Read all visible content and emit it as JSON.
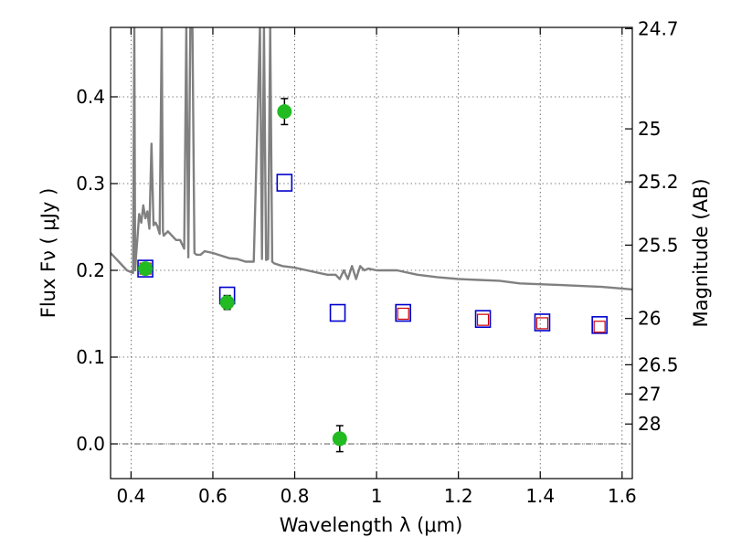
{
  "chart_data": {
    "type": "scatter",
    "xlabel": "Wavelength  λ (μm)",
    "ylabel": "Flux  Fν  ( μJy )",
    "ylabel_right": "Magnitude (AB)",
    "xlim": [
      0.35,
      1.625
    ],
    "ylim": [
      -0.04,
      0.48
    ],
    "x_ticks": [
      0.4,
      0.6,
      0.8,
      1.0,
      1.2,
      1.4,
      1.6
    ],
    "x_tick_labels": [
      "0.4",
      "0.6",
      "0.8",
      "1",
      "1.2",
      "1.4",
      "1.6"
    ],
    "y_ticks": [
      0.0,
      0.1,
      0.2,
      0.3,
      0.4
    ],
    "y_tick_labels": [
      "0.0",
      "0.1",
      "0.2",
      "0.3",
      "0.4"
    ],
    "right_ticks": [
      {
        "label": "24.7",
        "mag": 24.7
      },
      {
        "label": "25",
        "mag": 25.0
      },
      {
        "label": "25.2",
        "mag": 25.2
      },
      {
        "label": "25.5",
        "mag": 25.5
      },
      {
        "label": "26",
        "mag": 26.0
      },
      {
        "label": "26.5",
        "mag": 26.5
      },
      {
        "label": "27",
        "mag": 27.0
      },
      {
        "label": "28",
        "mag": 28.0
      }
    ],
    "grid": true,
    "zero_line": true,
    "colors": {
      "model_sed": "#808080",
      "observed": "#22bb22",
      "model_photometry": "#0000cc",
      "alt_model": "#cc0000"
    },
    "series": [
      {
        "kind": "line",
        "x": [
          0.35,
          0.37,
          0.39,
          0.405,
          0.408,
          0.41,
          0.412,
          0.416,
          0.42,
          0.425,
          0.43,
          0.435,
          0.44,
          0.445,
          0.45,
          0.455,
          0.46,
          0.465,
          0.47,
          0.475,
          0.478,
          0.48,
          0.49,
          0.5,
          0.51,
          0.52,
          0.53,
          0.535,
          0.54,
          0.545,
          0.55,
          0.555,
          0.56,
          0.57,
          0.58,
          0.6,
          0.62,
          0.64,
          0.66,
          0.68,
          0.7,
          0.715,
          0.72,
          0.725,
          0.73,
          0.735,
          0.74,
          0.745,
          0.75,
          0.77,
          0.8,
          0.83,
          0.86,
          0.88,
          0.9,
          0.91,
          0.92,
          0.93,
          0.94,
          0.95,
          0.96,
          0.97,
          0.98,
          1.0,
          1.05,
          1.1,
          1.15,
          1.2,
          1.25,
          1.3,
          1.35,
          1.4,
          1.45,
          1.5,
          1.55,
          1.6,
          1.625
        ],
        "y": [
          0.22,
          0.21,
          0.2,
          0.197,
          0.48,
          0.2,
          0.215,
          0.24,
          0.265,
          0.255,
          0.275,
          0.26,
          0.268,
          0.248,
          0.346,
          0.252,
          0.255,
          0.25,
          0.242,
          0.48,
          0.245,
          0.24,
          0.245,
          0.24,
          0.235,
          0.235,
          0.225,
          0.48,
          0.215,
          0.48,
          0.48,
          0.22,
          0.218,
          0.218,
          0.222,
          0.22,
          0.217,
          0.214,
          0.213,
          0.21,
          0.21,
          0.48,
          0.213,
          0.48,
          0.212,
          0.213,
          0.48,
          0.21,
          0.208,
          0.205,
          0.203,
          0.2,
          0.197,
          0.195,
          0.195,
          0.19,
          0.2,
          0.19,
          0.205,
          0.19,
          0.205,
          0.2,
          0.202,
          0.2,
          0.2,
          0.195,
          0.192,
          0.19,
          0.189,
          0.188,
          0.185,
          0.184,
          0.183,
          0.182,
          0.181,
          0.179,
          0.178
        ]
      },
      {
        "kind": "points_with_error",
        "x": [
          0.435,
          0.635,
          0.775,
          0.91
        ],
        "y": [
          0.202,
          0.163,
          0.383,
          0.006
        ],
        "yerr": [
          0.005,
          0.008,
          0.015,
          0.015
        ]
      },
      {
        "kind": "open_squares",
        "x": [
          0.435,
          0.635,
          0.775,
          0.905,
          1.065,
          1.26,
          1.405,
          1.545
        ],
        "y": [
          0.202,
          0.171,
          0.301,
          0.151,
          0.151,
          0.144,
          0.14,
          0.137
        ]
      },
      {
        "kind": "open_squares",
        "x": [
          0.435,
          1.065,
          1.26,
          1.405,
          1.545
        ],
        "y": [
          0.202,
          0.15,
          0.143,
          0.139,
          0.135
        ]
      }
    ]
  }
}
